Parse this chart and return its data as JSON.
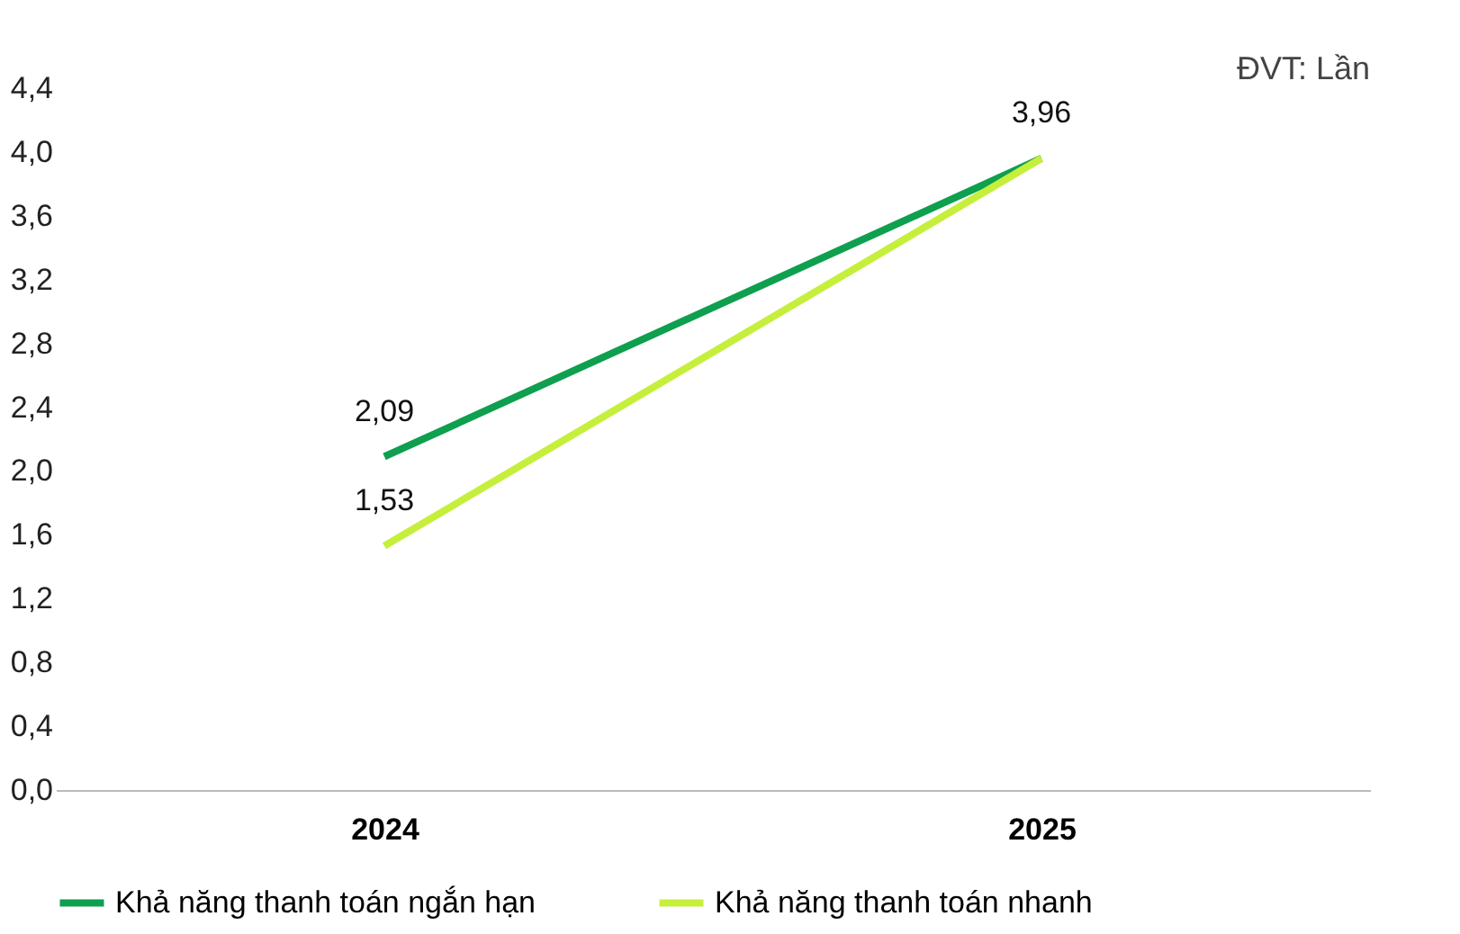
{
  "chart_data": {
    "type": "line",
    "categories": [
      "2024",
      "2025"
    ],
    "series": [
      {
        "name": "Khả năng thanh toán ngắn hạn",
        "color": "#0e9f4f",
        "values": [
          2.09,
          3.96
        ],
        "value_labels": [
          "2,09",
          "3,96"
        ]
      },
      {
        "name": "Khả năng thanh toán nhanh",
        "color": "#c6ef3c",
        "values": [
          1.53,
          3.96
        ],
        "value_labels": [
          "1,53",
          null
        ]
      }
    ],
    "ylim": [
      0,
      4.4
    ],
    "yticks": [
      {
        "value": 0,
        "label": "0,0"
      },
      {
        "value": 0.4,
        "label": "0,4"
      },
      {
        "value": 0.8,
        "label": "0,8"
      },
      {
        "value": 1.2,
        "label": "1,2"
      },
      {
        "value": 1.6,
        "label": "1,6"
      },
      {
        "value": 2,
        "label": "2,0"
      },
      {
        "value": 2.4,
        "label": "2,4"
      },
      {
        "value": 2.8,
        "label": "2,8"
      },
      {
        "value": 3.2,
        "label": "3,2"
      },
      {
        "value": 3.6,
        "label": "3,6"
      },
      {
        "value": 4,
        "label": "4,0"
      },
      {
        "value": 4.4,
        "label": "4,4"
      }
    ],
    "grid": false,
    "legend": "bottom",
    "marker": "none",
    "line_style": "solid",
    "annotations": [
      "ĐVT: Lần"
    ]
  }
}
